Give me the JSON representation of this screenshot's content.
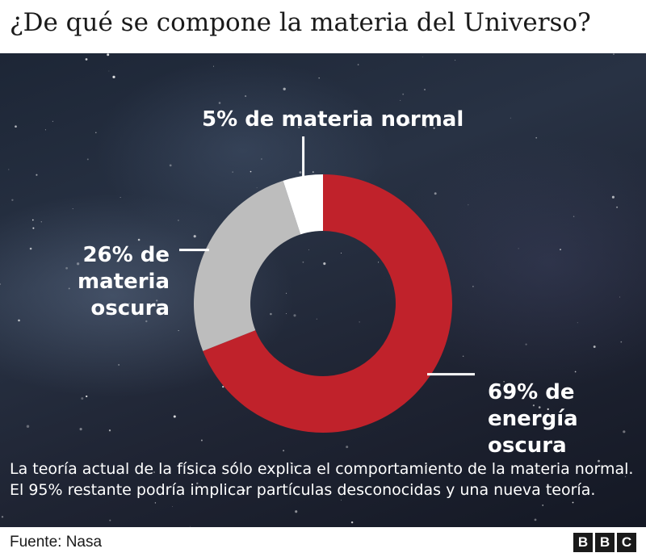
{
  "title": "¿De qué se compone la materia del Universo?",
  "chart_data": {
    "type": "pie",
    "variant": "donut",
    "title": "¿De qué se compone la materia del Universo?",
    "slices": [
      {
        "name": "energía oscura",
        "value": 69,
        "color": "#c0222b",
        "label_lines": [
          "69% de",
          "energía oscura"
        ]
      },
      {
        "name": "materia oscura",
        "value": 26,
        "color": "#bdbdbd",
        "label_lines": [
          "26% de",
          "materia oscura"
        ]
      },
      {
        "name": "materia normal",
        "value": 5,
        "color": "#ffffff",
        "label_lines": [
          "5% de materia normal"
        ]
      }
    ],
    "start": "12 o'clock, clockwise"
  },
  "note": "La teoría actual de la física sólo explica el comportamiento de la materia normal. El 95% restante podría implicar partículas desconocidas y una nueva teoría.",
  "source": "Fuente: Nasa",
  "logo": [
    "B",
    "B",
    "C"
  ]
}
